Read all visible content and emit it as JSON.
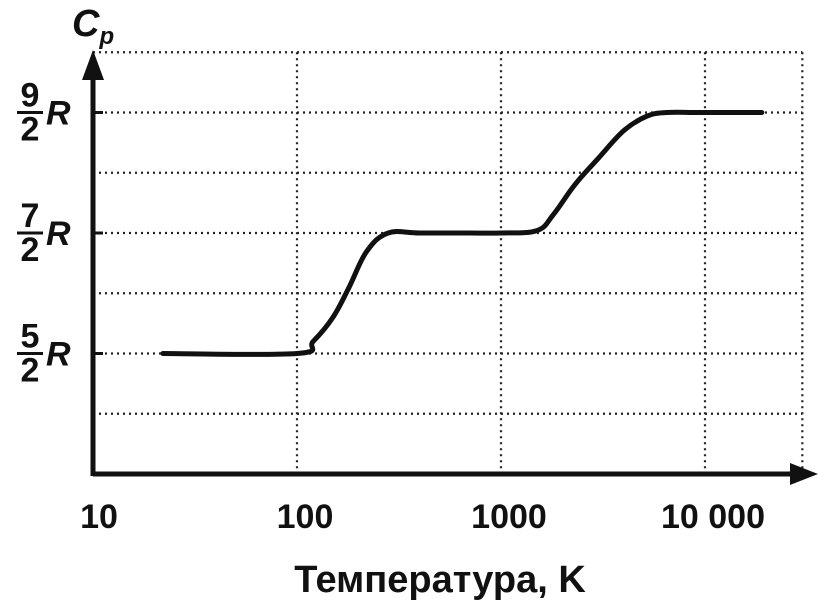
{
  "chart_data": {
    "type": "line",
    "title": "",
    "xlabel": "Температура,  K",
    "ylabel": "C",
    "ylabel_sub": "p",
    "x_scale": "log",
    "xlim": [
      10,
      30000
    ],
    "ylim": [
      1.5,
      5.0
    ],
    "grid": true,
    "x_ticks": [
      {
        "value": 10,
        "label": "10"
      },
      {
        "value": 100,
        "label": "100"
      },
      {
        "value": 1000,
        "label": "1000"
      },
      {
        "value": 10000,
        "label": "10 000"
      }
    ],
    "y_ticks": [
      {
        "value": 2.5,
        "numerator": "5",
        "denominator": "2",
        "symbol": "R"
      },
      {
        "value": 3.5,
        "numerator": "7",
        "denominator": "2",
        "symbol": "R"
      },
      {
        "value": 4.5,
        "numerator": "9",
        "denominator": "2",
        "symbol": "R"
      }
    ],
    "series": [
      {
        "x": [
          22,
          100,
          120,
          150,
          180,
          220,
          280,
          400,
          700,
          1000,
          1500,
          1800,
          2300,
          3000,
          4000,
          5200,
          6500,
          9000,
          12000,
          19000
        ],
        "y": [
          2.5,
          2.5,
          2.6,
          2.8,
          3.05,
          3.35,
          3.5,
          3.5,
          3.5,
          3.5,
          3.52,
          3.65,
          3.9,
          4.12,
          4.35,
          4.47,
          4.5,
          4.5,
          4.5,
          4.5
        ]
      }
    ]
  }
}
